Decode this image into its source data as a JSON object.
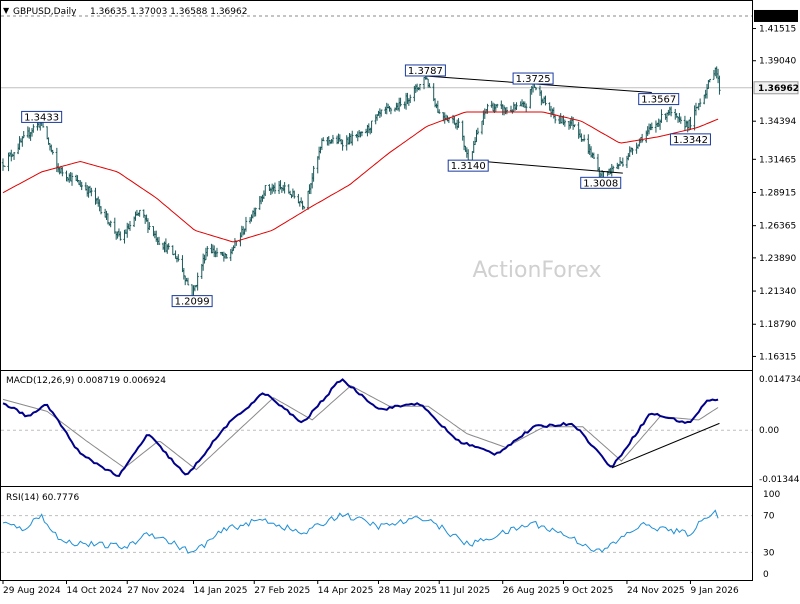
{
  "window": {
    "title": "GBPUSD,Daily",
    "ohlc": "1.36635 1.37003 1.36588 1.36962",
    "watermark": "ActionForex"
  },
  "colors": {
    "price": "#1a5a5a",
    "ma": "#e00000",
    "macd": "#00008b",
    "signal": "#8a8a8a",
    "rsi": "#1f8fd6",
    "grid": "#bfbfbf",
    "frame": "#000000"
  },
  "axes": {
    "x_ticks": [
      "29 Aug 2024",
      "14 Oct 2024",
      "27 Nov 2024",
      "14 Jan 2025",
      "27 Feb 2025",
      "14 Apr 2025",
      "28 May 2025",
      "11 Jul 2025",
      "26 Aug 2025",
      "9 Oct 2025",
      "24 Nov 2025",
      "9 Jan 2026"
    ],
    "price_ticks": [
      "1.41515",
      "1.39040",
      "1.34394",
      "1.31465",
      "1.28915",
      "1.26365",
      "1.23890",
      "1.21340",
      "1.18790",
      "1.16315"
    ],
    "price_marked": "1.42480",
    "current_price": "1.36962",
    "macd_ticks": [
      "0.014734",
      "0.00",
      "-0.013442"
    ],
    "rsi_ticks": [
      "100",
      "70",
      "30",
      "0"
    ]
  },
  "chart_data": [
    {
      "type": "ohlc",
      "title": "GBPUSD,Daily",
      "subtitle": "1.36635 1.37003 1.36588 1.36962",
      "x_ticks": [
        "29 Aug 2024",
        "14 Oct 2024",
        "27 Nov 2024",
        "14 Jan 2025",
        "27 Feb 2025",
        "14 Apr 2025",
        "28 May 2025",
        "11 Jul 2025",
        "26 Aug 2025",
        "9 Oct 2025",
        "24 Nov 2025",
        "9 Jan 2026"
      ],
      "ylim": [
        1.1535,
        1.434
      ],
      "close_anchors": [
        {
          "x": "2024-08-30",
          "y": 1.312
        },
        {
          "x": "2024-09-20",
          "y": 1.339
        },
        {
          "x": "2024-09-26",
          "y": 1.343
        },
        {
          "x": "2024-10-07",
          "y": 1.308
        },
        {
          "x": "2024-10-31",
          "y": 1.29
        },
        {
          "x": "2024-11-12",
          "y": 1.27
        },
        {
          "x": "2024-11-22",
          "y": 1.253
        },
        {
          "x": "2024-12-06",
          "y": 1.274
        },
        {
          "x": "2024-12-20",
          "y": 1.252
        },
        {
          "x": "2025-01-03",
          "y": 1.238
        },
        {
          "x": "2025-01-13",
          "y": 1.2099
        },
        {
          "x": "2025-01-24",
          "y": 1.247
        },
        {
          "x": "2025-02-07",
          "y": 1.238
        },
        {
          "x": "2025-02-21",
          "y": 1.264
        },
        {
          "x": "2025-03-07",
          "y": 1.292
        },
        {
          "x": "2025-03-21",
          "y": 1.292
        },
        {
          "x": "2025-04-04",
          "y": 1.28
        },
        {
          "x": "2025-04-18",
          "y": 1.33
        },
        {
          "x": "2025-05-02",
          "y": 1.328
        },
        {
          "x": "2025-05-16",
          "y": 1.333
        },
        {
          "x": "2025-05-30",
          "y": 1.35
        },
        {
          "x": "2025-06-13",
          "y": 1.356
        },
        {
          "x": "2025-06-27",
          "y": 1.372
        },
        {
          "x": "2025-07-01",
          "y": 1.3787
        },
        {
          "x": "2025-07-11",
          "y": 1.35
        },
        {
          "x": "2025-07-25",
          "y": 1.342
        },
        {
          "x": "2025-08-01",
          "y": 1.314
        },
        {
          "x": "2025-08-15",
          "y": 1.356
        },
        {
          "x": "2025-08-29",
          "y": 1.352
        },
        {
          "x": "2025-09-12",
          "y": 1.356
        },
        {
          "x": "2025-09-17",
          "y": 1.3725
        },
        {
          "x": "2025-10-03",
          "y": 1.346
        },
        {
          "x": "2025-10-17",
          "y": 1.342
        },
        {
          "x": "2025-10-31",
          "y": 1.315
        },
        {
          "x": "2025-11-05",
          "y": 1.3008
        },
        {
          "x": "2025-11-21",
          "y": 1.313
        },
        {
          "x": "2025-12-05",
          "y": 1.332
        },
        {
          "x": "2025-12-12",
          "y": 1.338
        },
        {
          "x": "2025-12-24",
          "y": 1.352
        },
        {
          "x": "2026-01-02",
          "y": 1.342
        },
        {
          "x": "2026-01-09",
          "y": 1.342
        },
        {
          "x": "2026-01-16",
          "y": 1.36
        },
        {
          "x": "2026-01-21",
          "y": 1.369
        },
        {
          "x": "2026-01-27",
          "y": 1.386
        },
        {
          "x": "2026-01-30",
          "y": 1.3696
        }
      ],
      "moving_average": [
        {
          "x": "2024-08-29",
          "y": 1.289
        },
        {
          "x": "2024-09-26",
          "y": 1.305
        },
        {
          "x": "2024-10-24",
          "y": 1.313
        },
        {
          "x": "2024-11-20",
          "y": 1.305
        },
        {
          "x": "2024-12-18",
          "y": 1.285
        },
        {
          "x": "2025-01-15",
          "y": 1.26
        },
        {
          "x": "2025-02-12",
          "y": 1.251
        },
        {
          "x": "2025-03-12",
          "y": 1.26
        },
        {
          "x": "2025-04-09",
          "y": 1.278
        },
        {
          "x": "2025-05-07",
          "y": 1.295
        },
        {
          "x": "2025-06-04",
          "y": 1.319
        },
        {
          "x": "2025-07-02",
          "y": 1.34
        },
        {
          "x": "2025-07-30",
          "y": 1.351
        },
        {
          "x": "2025-08-27",
          "y": 1.351
        },
        {
          "x": "2025-09-24",
          "y": 1.351
        },
        {
          "x": "2025-10-22",
          "y": 1.344
        },
        {
          "x": "2025-11-19",
          "y": 1.327
        },
        {
          "x": "2025-12-17",
          "y": 1.332
        },
        {
          "x": "2026-01-14",
          "y": 1.339
        },
        {
          "x": "2026-01-30",
          "y": 1.346
        }
      ],
      "price_labels": [
        {
          "text": "1.3433",
          "x": "2024-09-26",
          "y": 1.343
        },
        {
          "text": "1.2099",
          "x": "2025-01-13",
          "y": 1.2099
        },
        {
          "text": "1.3787",
          "x": "2025-07-01",
          "y": 1.3787
        },
        {
          "text": "1.3140",
          "x": "2025-08-01",
          "y": 1.314
        },
        {
          "text": "1.3725",
          "x": "2025-09-17",
          "y": 1.3725
        },
        {
          "text": "1.3008",
          "x": "2025-11-05",
          "y": 1.3008
        },
        {
          "text": "1.3567",
          "x": "2025-12-17",
          "y": 1.3567
        },
        {
          "text": "1.3342",
          "x": "2026-01-09",
          "y": 1.3342
        }
      ],
      "trendlines": [
        {
          "from": {
            "x": "2025-07-01",
            "y": 1.3787
          },
          "to": {
            "x": "2025-12-12",
            "y": 1.366
          }
        },
        {
          "from": {
            "x": "2025-08-01",
            "y": 1.314
          },
          "to": {
            "x": "2025-11-21",
            "y": 1.304
          }
        }
      ],
      "horizontal_line": 1.36962,
      "marked_level": 1.4248
    },
    {
      "type": "line",
      "title": "MACD(12,26,9) 0.008719 0.006924",
      "ylim": [
        -0.016,
        0.017
      ],
      "y_ticks": [
        0.014734,
        0.0,
        -0.013442
      ],
      "series": [
        {
          "name": "MACD",
          "points": [
            {
              "x": "2024-08-29",
              "y": 0.008
            },
            {
              "x": "2024-09-16",
              "y": 0.004
            },
            {
              "x": "2024-09-30",
              "y": 0.0075
            },
            {
              "x": "2024-10-24",
              "y": -0.007
            },
            {
              "x": "2024-11-21",
              "y": -0.0135
            },
            {
              "x": "2024-12-12",
              "y": -0.001
            },
            {
              "x": "2025-01-09",
              "y": -0.0135
            },
            {
              "x": "2025-02-06",
              "y": 0.001
            },
            {
              "x": "2025-03-06",
              "y": 0.011
            },
            {
              "x": "2025-04-03",
              "y": 0.002
            },
            {
              "x": "2025-05-01",
              "y": 0.015
            },
            {
              "x": "2025-05-29",
              "y": 0.006
            },
            {
              "x": "2025-06-26",
              "y": 0.008
            },
            {
              "x": "2025-07-24",
              "y": -0.003
            },
            {
              "x": "2025-08-21",
              "y": -0.007
            },
            {
              "x": "2025-09-18",
              "y": 0.001
            },
            {
              "x": "2025-10-16",
              "y": 0.002
            },
            {
              "x": "2025-11-13",
              "y": -0.011
            },
            {
              "x": "2025-12-11",
              "y": 0.005
            },
            {
              "x": "2026-01-08",
              "y": 0.002
            },
            {
              "x": "2026-01-22",
              "y": 0.009
            },
            {
              "x": "2026-01-30",
              "y": 0.0087
            }
          ]
        },
        {
          "name": "Signal",
          "points": [
            {
              "x": "2024-08-29",
              "y": 0.009
            },
            {
              "x": "2024-09-30",
              "y": 0.0055
            },
            {
              "x": "2024-10-28",
              "y": -0.003
            },
            {
              "x": "2024-11-25",
              "y": -0.011
            },
            {
              "x": "2024-12-20",
              "y": -0.003
            },
            {
              "x": "2025-01-16",
              "y": -0.0115
            },
            {
              "x": "2025-02-13",
              "y": -0.001
            },
            {
              "x": "2025-03-13",
              "y": 0.0095
            },
            {
              "x": "2025-04-10",
              "y": 0.003
            },
            {
              "x": "2025-05-08",
              "y": 0.013
            },
            {
              "x": "2025-06-05",
              "y": 0.007
            },
            {
              "x": "2025-07-03",
              "y": 0.007
            },
            {
              "x": "2025-07-31",
              "y": -0.001
            },
            {
              "x": "2025-08-28",
              "y": -0.005
            },
            {
              "x": "2025-09-25",
              "y": 0.001
            },
            {
              "x": "2025-10-23",
              "y": 0.001
            },
            {
              "x": "2025-11-20",
              "y": -0.009
            },
            {
              "x": "2025-12-18",
              "y": 0.004
            },
            {
              "x": "2026-01-15",
              "y": 0.003
            },
            {
              "x": "2026-01-30",
              "y": 0.0069
            }
          ]
        }
      ],
      "trendline": {
        "from": {
          "x": "2025-11-13",
          "y": -0.011
        },
        "to": {
          "x": "2026-01-30",
          "y": 0.002
        }
      }
    },
    {
      "type": "line",
      "title": "RSI(14) 60.7776",
      "ylim": [
        0,
        100
      ],
      "y_ticks": [
        100,
        70,
        30,
        0
      ],
      "series": [
        {
          "name": "RSI(14)",
          "points": [
            {
              "x": "2024-08-29",
              "y": 62
            },
            {
              "x": "2024-09-12",
              "y": 55
            },
            {
              "x": "2024-09-26",
              "y": 70
            },
            {
              "x": "2024-10-10",
              "y": 42
            },
            {
              "x": "2024-11-07",
              "y": 38
            },
            {
              "x": "2024-11-28",
              "y": 36
            },
            {
              "x": "2024-12-12",
              "y": 52
            },
            {
              "x": "2025-01-02",
              "y": 38
            },
            {
              "x": "2025-01-13",
              "y": 29
            },
            {
              "x": "2025-02-06",
              "y": 55
            },
            {
              "x": "2025-03-06",
              "y": 66
            },
            {
              "x": "2025-04-03",
              "y": 50
            },
            {
              "x": "2025-05-01",
              "y": 72
            },
            {
              "x": "2025-05-29",
              "y": 58
            },
            {
              "x": "2025-07-01",
              "y": 68
            },
            {
              "x": "2025-08-01",
              "y": 38
            },
            {
              "x": "2025-09-17",
              "y": 62
            },
            {
              "x": "2025-10-09",
              "y": 50
            },
            {
              "x": "2025-11-05",
              "y": 30
            },
            {
              "x": "2025-12-04",
              "y": 60
            },
            {
              "x": "2026-01-08",
              "y": 50
            },
            {
              "x": "2026-01-27",
              "y": 78
            },
            {
              "x": "2026-01-30",
              "y": 61
            }
          ]
        }
      ]
    }
  ],
  "panels": {
    "macd_title": "MACD(12,26,9) 0.008719 0.006924",
    "rsi_title": "RSI(14) 60.7776"
  }
}
